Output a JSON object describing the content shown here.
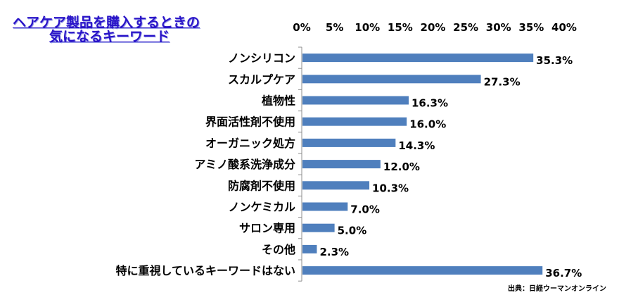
{
  "title": {
    "line1": "ヘアケア製品を購入するときの",
    "line2": "気になるキーワード"
  },
  "source": "出典：日経ウーマンオンライン",
  "chart_data": {
    "type": "bar",
    "orientation": "horizontal",
    "title": "ヘアケア製品を購入するときの気になるキーワード",
    "categories": [
      "ノンシリコン",
      "スカルプケア",
      "植物性",
      "界面活性剤不使用",
      "オーガニック処方",
      "アミノ酸系洗浄成分",
      "防腐剤不使用",
      "ノンケミカル",
      "サロン専用",
      "その他",
      "特に重視しているキーワードはない"
    ],
    "values": [
      35.3,
      27.3,
      16.3,
      16.0,
      14.3,
      12.0,
      10.3,
      7.0,
      5.0,
      2.3,
      36.7
    ],
    "value_labels": [
      "35.3%",
      "27.3%",
      "16.3%",
      "16.0%",
      "14.3%",
      "12.0%",
      "10.3%",
      "7.0%",
      "5.0%",
      "2.3%",
      "36.7%"
    ],
    "xlim": [
      0,
      40
    ],
    "xticks": [
      "0%",
      "5%",
      "10%",
      "15%",
      "20%",
      "25%",
      "30%",
      "35%",
      "40%"
    ],
    "xaxis_position": "top",
    "grid": false,
    "bar_color": "#4f7fbd"
  }
}
